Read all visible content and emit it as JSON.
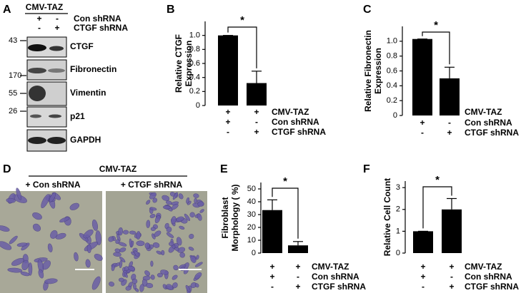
{
  "panel_labels": [
    "A",
    "B",
    "C",
    "D",
    "E",
    "F"
  ],
  "blot": {
    "header": "CMV-TAZ",
    "conditions": [
      {
        "label": "Con shRNA",
        "signs": [
          "+",
          "-"
        ]
      },
      {
        "label": "CTGF shRNA",
        "signs": [
          "-",
          "+"
        ]
      }
    ],
    "rows": [
      {
        "marker": 43,
        "protein": "CTGF"
      },
      {
        "marker": 170,
        "protein": "Fibronectin"
      },
      {
        "marker": 55,
        "protein": "Vimentin"
      },
      {
        "marker": 26,
        "protein": "p21"
      },
      {
        "protein": "GAPDH"
      }
    ]
  },
  "micrographs": {
    "header": "CMV-TAZ",
    "labels": [
      "+ Con shRNA",
      "+ CTGF shRNA"
    ]
  },
  "chart_data": [
    {
      "type": "bar",
      "y_label": [
        "Relative CTGF",
        "Expression"
      ],
      "values": [
        1.0,
        0.32
      ],
      "errors": [
        0,
        0.17
      ],
      "color": "#000000",
      "ylim": [
        0,
        1.2
      ],
      "yticks": [
        0,
        0.2,
        0.4,
        0.6,
        0.8,
        {
          "value": 1,
          "label": "1.0"
        }
      ],
      "significance": "*",
      "conditions": [
        {
          "label": "CMV-TAZ",
          "signs": [
            "+",
            "+"
          ]
        },
        {
          "label": "Con shRNA",
          "signs": [
            "+",
            "-"
          ]
        },
        {
          "label": "CTGF shRNA",
          "signs": [
            "-",
            "+"
          ]
        }
      ]
    },
    {
      "type": "bar",
      "y_label": [
        "Relative Fibronectin",
        "Expression"
      ],
      "values": [
        1.03,
        0.5
      ],
      "errors": [
        0,
        0.15
      ],
      "color": "#000000",
      "ylim": [
        0,
        1.2
      ],
      "yticks": [
        0,
        0.2,
        0.4,
        0.6,
        0.8,
        {
          "value": 1,
          "label": "1.0"
        }
      ],
      "significance": "*",
      "conditions": [
        {
          "label": "CMV-TAZ",
          "signs": [
            "+",
            "+"
          ]
        },
        {
          "label": "Con shRNA",
          "signs": [
            "+",
            "-"
          ]
        },
        {
          "label": "CTGF shRNA",
          "signs": [
            "-",
            "+"
          ]
        }
      ]
    },
    {
      "type": "bar",
      "y_label": [
        "Fibroblast",
        "Morphology ( %)"
      ],
      "values": [
        33.5,
        6
      ],
      "errors": [
        8,
        3
      ],
      "color": "#000000",
      "ylim": [
        0,
        55
      ],
      "yticks": [
        0,
        10,
        20,
        30,
        40,
        50
      ],
      "significance": "*",
      "conditions": [
        {
          "label": "CMV-TAZ",
          "signs": [
            "+",
            "+"
          ]
        },
        {
          "label": "Con shRNA",
          "signs": [
            "+",
            "-"
          ]
        },
        {
          "label": "CTGF shRNA",
          "signs": [
            "-",
            "+"
          ]
        }
      ]
    },
    {
      "type": "bar",
      "y_label": [
        "Relative Cell Count"
      ],
      "values": [
        1.0,
        2.0
      ],
      "errors": [
        0,
        0.5
      ],
      "color": "#000000",
      "ylim": [
        0,
        3.3
      ],
      "yticks": [
        0,
        1,
        2,
        3
      ],
      "significance": "*",
      "conditions": [
        {
          "label": "CMV-TAZ",
          "signs": [
            "+",
            "+"
          ]
        },
        {
          "label": "Con shRNA",
          "signs": [
            "+",
            "-"
          ]
        },
        {
          "label": "CTGF shRNA",
          "signs": [
            "-",
            "+"
          ]
        }
      ]
    }
  ]
}
